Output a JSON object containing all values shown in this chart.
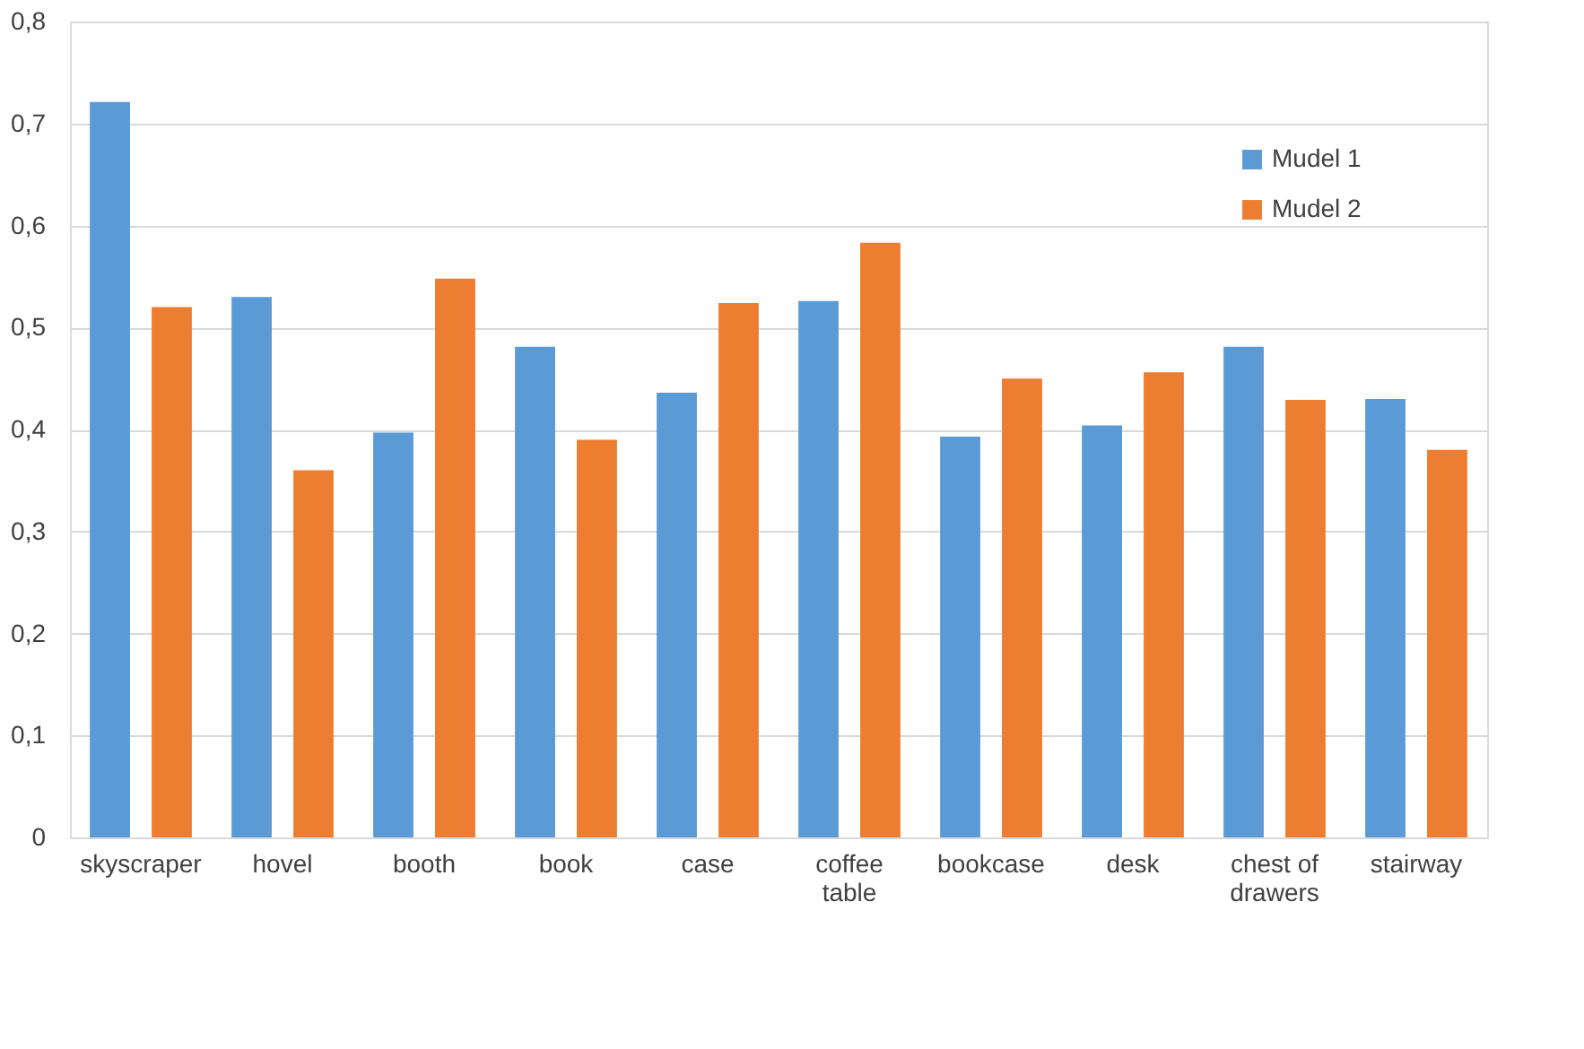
{
  "chart_data": {
    "type": "bar",
    "categories": [
      "skyscraper",
      "hovel",
      "booth",
      "book",
      "case",
      "coffee table",
      "bookcase",
      "desk",
      "chest of drawers",
      "stairway"
    ],
    "series": [
      {
        "name": "Mudel 1",
        "color": "#5b9bd5",
        "values": [
          0.721,
          0.53,
          0.397,
          0.481,
          0.436,
          0.526,
          0.393,
          0.404,
          0.481,
          0.43
        ]
      },
      {
        "name": "Mudel 2",
        "color": "#ed7d31",
        "values": [
          0.52,
          0.36,
          0.548,
          0.39,
          0.524,
          0.583,
          0.45,
          0.456,
          0.429,
          0.38
        ]
      }
    ],
    "ylim": [
      0,
      0.8
    ],
    "yticks": [
      0,
      {
        "value": 0.1,
        "label": "0,1"
      },
      {
        "value": 0.2,
        "label": "0,2"
      },
      {
        "value": 0.3,
        "label": "0,3"
      },
      {
        "value": 0.4,
        "label": "0,4"
      },
      {
        "value": 0.5,
        "label": "0,5"
      },
      {
        "value": 0.6,
        "label": "0,6"
      },
      {
        "value": 0.7,
        "label": "0,7"
      },
      {
        "value": 0.8,
        "label": "0,8"
      }
    ],
    "grid": "y",
    "legend": "top right"
  }
}
